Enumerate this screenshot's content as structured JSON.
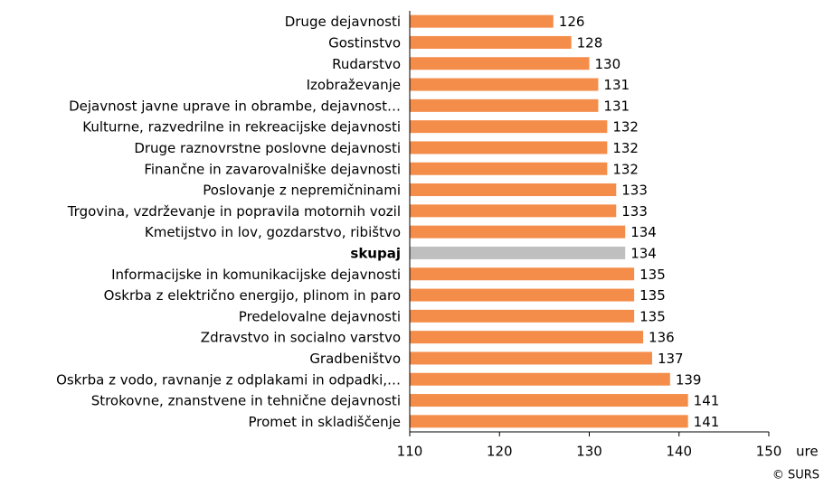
{
  "chart_data": {
    "type": "barh",
    "categories": [
      "Druge dejavnosti",
      "Gostinstvo",
      "Rudarstvo",
      "Izobraževanje",
      "Dejavnost javne uprave in obrambe, dejavnost…",
      "Kulturne, razvedrilne in rekreacijske dejavnosti",
      "Druge raznovrstne poslovne dejavnosti",
      "Finančne in zavarovalniške dejavnosti",
      "Poslovanje z nepremičninami",
      "Trgovina, vzdrževanje in popravila motornih vozil",
      "Kmetijstvo in lov, gozdarstvo, ribištvo",
      "skupaj",
      "Informacijske in komunikacijske dejavnosti",
      "Oskrba z električno energijo, plinom in paro",
      "Predelovalne dejavnosti",
      "Zdravstvo in socialno varstvo",
      "Gradbeništvo",
      "Oskrba z vodo, ravnanje z odplakami in odpadki,…",
      "Strokovne, znanstvene in tehnične dejavnosti",
      "Promet in skladiščenje"
    ],
    "values": [
      126,
      128,
      130,
      131,
      131,
      132,
      132,
      132,
      133,
      133,
      134,
      134,
      135,
      135,
      135,
      136,
      137,
      139,
      141,
      141
    ],
    "color": "#f58d4a",
    "colors": [
      "#f58d4a",
      "#f58d4a",
      "#f58d4a",
      "#f58d4a",
      "#f58d4a",
      "#f58d4a",
      "#f58d4a",
      "#f58d4a",
      "#f58d4a",
      "#f58d4a",
      "#f58d4a",
      "#bfbfbf",
      "#f58d4a",
      "#f58d4a",
      "#f58d4a",
      "#f58d4a",
      "#f58d4a",
      "#f58d4a",
      "#f58d4a",
      "#f58d4a"
    ],
    "xlim": [
      110,
      150
    ],
    "xticks": [
      110,
      120,
      130,
      140,
      150
    ],
    "xlabel": "ure",
    "source": "© SURS"
  }
}
